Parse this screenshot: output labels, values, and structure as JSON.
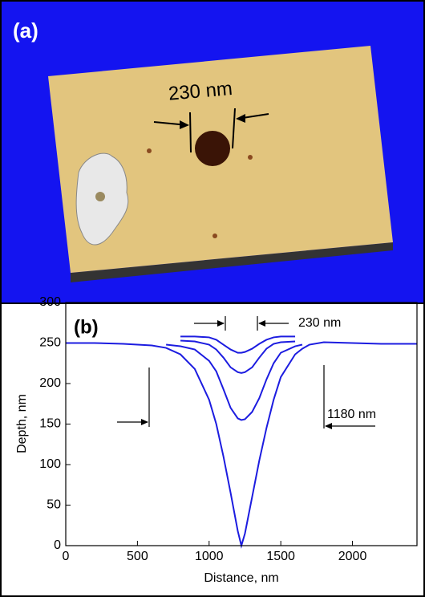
{
  "panel_a": {
    "label": "(a)",
    "annotation": "230 nm"
  },
  "chart_data": {
    "type": "line",
    "label": "(b)",
    "xlabel": "Distance, nm",
    "ylabel": "Depth, nm",
    "annotations": [
      "230 nm",
      "1180 nm"
    ],
    "xlim": [
      0,
      2450
    ],
    "ylim": [
      0,
      300
    ],
    "xticks": [
      0,
      500,
      1000,
      1500,
      2000
    ],
    "yticks": [
      0,
      50,
      100,
      150,
      200,
      250,
      300
    ],
    "grid": false,
    "x": [
      0,
      200,
      400,
      600,
      700,
      800,
      900,
      1000,
      1050,
      1100,
      1150,
      1200,
      1225,
      1250,
      1300,
      1350,
      1400,
      1450,
      1500,
      1600,
      1650,
      1700,
      1800,
      2000,
      2200,
      2450
    ],
    "series": [
      {
        "color": "#1c1ce0",
        "values": [
          250,
          250,
          249,
          247,
          244,
          236,
          218,
          180,
          150,
          110,
          65,
          18,
          0,
          15,
          60,
          105,
          145,
          180,
          208,
          236,
          243,
          248,
          251,
          250,
          249,
          249
        ]
      },
      {
        "color": "#1c1ce0",
        "values": [
          null,
          null,
          null,
          null,
          248,
          246,
          242,
          228,
          215,
          193,
          170,
          157,
          155,
          156,
          165,
          182,
          205,
          225,
          238,
          246,
          248,
          null,
          null,
          null,
          null,
          null
        ]
      },
      {
        "color": "#1c1ce0",
        "values": [
          null,
          null,
          null,
          null,
          null,
          253,
          252,
          248,
          242,
          232,
          220,
          214,
          213,
          214,
          220,
          232,
          243,
          249,
          251,
          252,
          null,
          null,
          null,
          null,
          null,
          null
        ]
      },
      {
        "color": "#1c1ce0",
        "values": [
          null,
          null,
          null,
          null,
          null,
          258,
          258,
          257,
          254,
          248,
          242,
          238,
          238,
          239,
          243,
          249,
          254,
          257,
          258,
          258,
          null,
          null,
          null,
          null,
          null,
          null
        ]
      }
    ]
  }
}
